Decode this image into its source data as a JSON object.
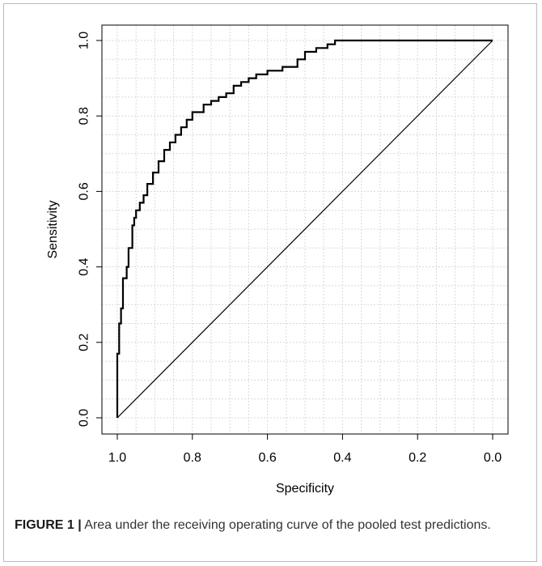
{
  "chart_data": {
    "type": "line",
    "title": "",
    "xlabel": "Specificity",
    "ylabel": "Sensitivity",
    "x_reversed": true,
    "xlim": [
      1.0,
      0.0
    ],
    "ylim": [
      0.0,
      1.0
    ],
    "xticks": [
      "1.0",
      "0.8",
      "0.6",
      "0.4",
      "0.2",
      "0.0"
    ],
    "yticks": [
      "0.0",
      "0.2",
      "0.4",
      "0.6",
      "0.8",
      "1.0"
    ],
    "grid": true,
    "series": [
      {
        "color": "#000000",
        "x": [
          1.0,
          1.0,
          0.995,
          0.99,
          0.985,
          0.975,
          0.97,
          0.96,
          0.955,
          0.95,
          0.94,
          0.93,
          0.92,
          0.905,
          0.89,
          0.875,
          0.86,
          0.845,
          0.83,
          0.815,
          0.8,
          0.79,
          0.77,
          0.75,
          0.73,
          0.71,
          0.69,
          0.67,
          0.65,
          0.63,
          0.6,
          0.56,
          0.52,
          0.5,
          0.47,
          0.44,
          0.43,
          0.42,
          0.0
        ],
        "y": [
          0.0,
          0.17,
          0.25,
          0.29,
          0.37,
          0.4,
          0.45,
          0.51,
          0.53,
          0.55,
          0.57,
          0.59,
          0.62,
          0.65,
          0.68,
          0.71,
          0.73,
          0.75,
          0.77,
          0.79,
          0.81,
          0.81,
          0.83,
          0.84,
          0.85,
          0.86,
          0.88,
          0.89,
          0.9,
          0.91,
          0.92,
          0.93,
          0.95,
          0.97,
          0.98,
          0.99,
          0.99,
          1.0,
          1.0
        ]
      },
      {
        "color": "#000000",
        "x": [
          1.0,
          0.0
        ],
        "y": [
          0.0,
          1.0
        ]
      }
    ]
  },
  "caption": {
    "label": "FIGURE 1 |",
    "text": " Area under the receiving operating curve of the pooled test predictions."
  }
}
